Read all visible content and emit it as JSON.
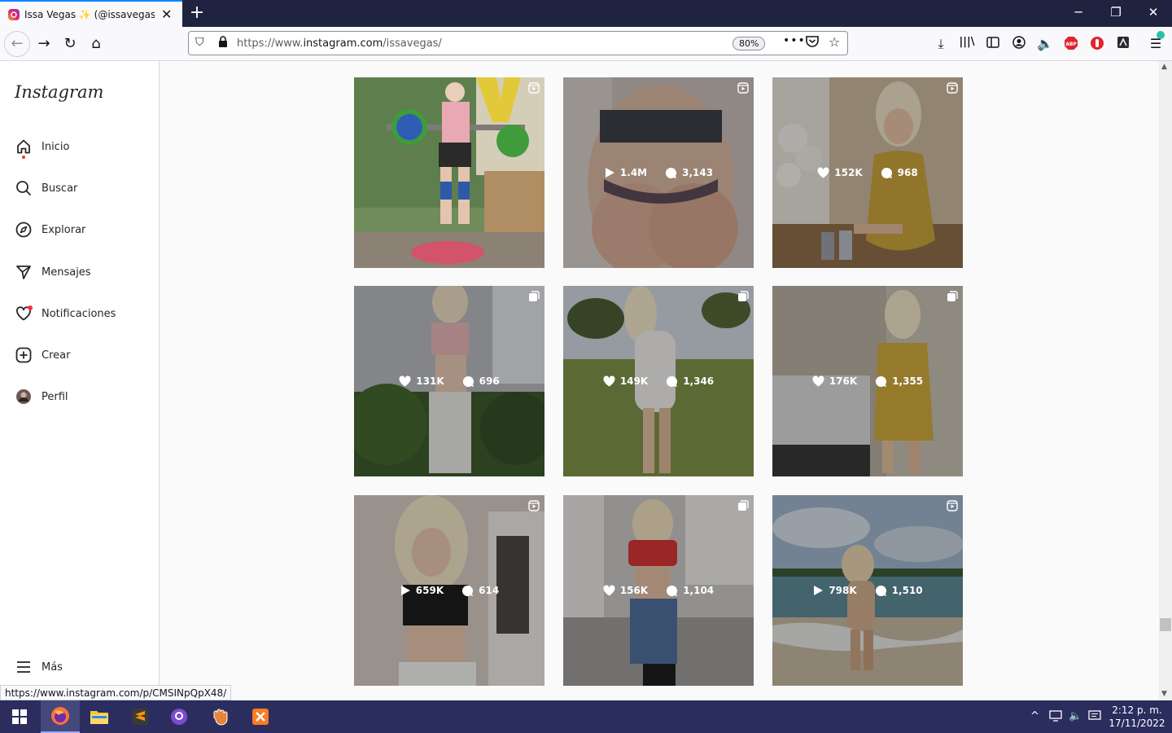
{
  "browser": {
    "tab_title": "Issa Vegas ✨ (@issavegas) • Fotos",
    "url_scheme": "https://www.",
    "url_domain": "instagram.com",
    "url_path": "/issavegas/",
    "zoom": "80%",
    "status_url": "https://www.instagram.com/p/CMSINpQpX48/"
  },
  "sidebar": {
    "logo": "Instagram",
    "items": [
      {
        "label": "Inicio",
        "icon": "home-icon"
      },
      {
        "label": "Buscar",
        "icon": "search-icon"
      },
      {
        "label": "Explorar",
        "icon": "compass-icon"
      },
      {
        "label": "Mensajes",
        "icon": "send-icon"
      },
      {
        "label": "Notificaciones",
        "icon": "heart-icon"
      },
      {
        "label": "Crear",
        "icon": "plus-square-icon"
      },
      {
        "label": "Perfil",
        "icon": "avatar-icon"
      }
    ],
    "more_label": "Más"
  },
  "posts": [
    {
      "type": "reel",
      "metric": "",
      "comments": "",
      "stats_visible": false,
      "bg": "#7a8f5e"
    },
    {
      "type": "reel",
      "metric_kind": "play",
      "metric": "1.4M",
      "comments": "3,143",
      "stats_visible": true,
      "bg": "#b9a9a2"
    },
    {
      "type": "reel",
      "metric_kind": "like",
      "metric": "152K",
      "comments": "968",
      "stats_visible": true,
      "bg": "#a99574"
    },
    {
      "type": "carousel",
      "metric_kind": "like",
      "metric": "131K",
      "comments": "696",
      "stats_visible": true,
      "bg": "#8a8a7e"
    },
    {
      "type": "carousel",
      "metric_kind": "like",
      "metric": "149K",
      "comments": "1,346",
      "stats_visible": true,
      "bg": "#7f8d5a"
    },
    {
      "type": "carousel",
      "metric_kind": "like",
      "metric": "176K",
      "comments": "1,355",
      "stats_visible": true,
      "bg": "#8a7f6e"
    },
    {
      "type": "reel",
      "metric_kind": "play",
      "metric": "659K",
      "comments": "614",
      "stats_visible": true,
      "bg": "#b7a8a0"
    },
    {
      "type": "carousel",
      "metric_kind": "like",
      "metric": "156K",
      "comments": "1,104",
      "stats_visible": true,
      "bg": "#a9a7a5"
    },
    {
      "type": "reel",
      "metric_kind": "play",
      "metric": "798K",
      "comments": "1,510",
      "stats_visible": true,
      "bg": "#8d8a80"
    }
  ],
  "taskbar": {
    "time": "2:12 p. m.",
    "date": "17/11/2022"
  },
  "colors": {
    "tabbar": "#202340",
    "taskbar": "#2b2d5e",
    "notification_dot": "#ff3040"
  }
}
